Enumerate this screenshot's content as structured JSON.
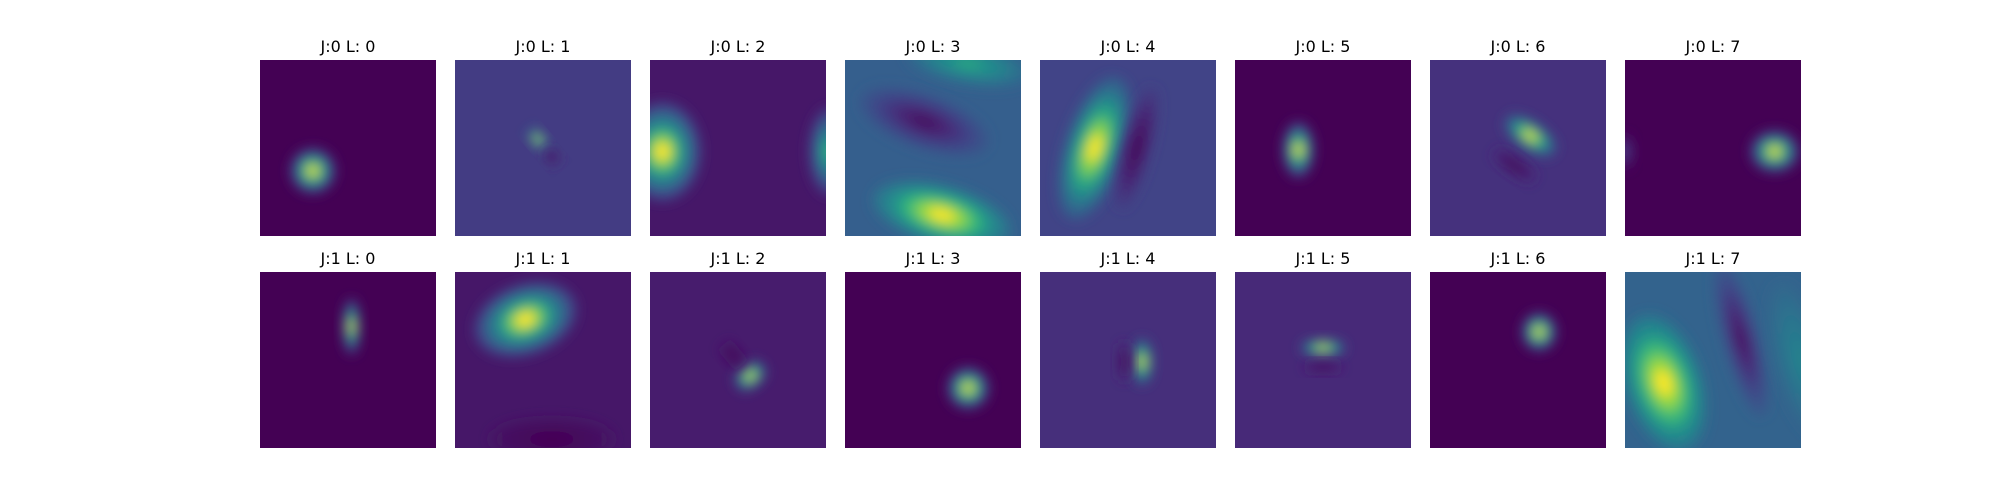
{
  "chart_data": {
    "type": "heatmap",
    "colormap": "viridis",
    "axes_visible": false,
    "rows": 2,
    "cols": 8,
    "panels": [
      {
        "title": "J:0 L: 0",
        "background": 0.0,
        "blobs": [
          {
            "cx": 0.3,
            "cy": 0.63,
            "rx": 0.13,
            "ry": 0.13,
            "rot": 0,
            "v": 1.0
          }
        ]
      },
      {
        "title": "J:0 L: 1",
        "background": 0.22,
        "blobs": [
          {
            "cx": 0.47,
            "cy": 0.45,
            "rx": 0.04,
            "ry": 0.07,
            "rot": -40,
            "v": 1.0
          },
          {
            "cx": 0.55,
            "cy": 0.55,
            "rx": 0.04,
            "ry": 0.05,
            "rot": -40,
            "v": 0.0
          }
        ]
      },
      {
        "title": "J:0 L: 2",
        "background": 0.08,
        "blobs": [
          {
            "cx": 0.07,
            "cy": 0.52,
            "rx": 0.22,
            "ry": 0.28,
            "rot": 0,
            "v": 1.0
          },
          {
            "cx": 1.02,
            "cy": 0.52,
            "rx": 0.12,
            "ry": 0.25,
            "rot": 0,
            "v": 0.75
          }
        ]
      },
      {
        "title": "J:0 L: 3",
        "background": 0.38,
        "blobs": [
          {
            "cx": 0.45,
            "cy": 0.35,
            "rx": 0.38,
            "ry": 0.15,
            "rot": 20,
            "v": 0.05
          },
          {
            "cx": 0.55,
            "cy": 0.88,
            "rx": 0.4,
            "ry": 0.17,
            "rot": 15,
            "v": 1.0
          },
          {
            "cx": 0.7,
            "cy": 0.02,
            "rx": 0.35,
            "ry": 0.12,
            "rot": 10,
            "v": 0.7
          }
        ]
      },
      {
        "title": "J:0 L: 4",
        "background": 0.25,
        "blobs": [
          {
            "cx": 0.31,
            "cy": 0.5,
            "rx": 0.17,
            "ry": 0.42,
            "rot": 18,
            "v": 1.0
          },
          {
            "cx": 0.55,
            "cy": 0.5,
            "rx": 0.08,
            "ry": 0.35,
            "rot": 15,
            "v": 0.0
          }
        ]
      },
      {
        "title": "J:0 L: 5",
        "background": 0.0,
        "blobs": [
          {
            "cx": 0.36,
            "cy": 0.51,
            "rx": 0.09,
            "ry": 0.16,
            "rot": 0,
            "v": 1.0
          }
        ]
      },
      {
        "title": "J:0 L: 6",
        "background": 0.18,
        "blobs": [
          {
            "cx": 0.57,
            "cy": 0.43,
            "rx": 0.17,
            "ry": 0.08,
            "rot": 35,
            "v": 1.0
          },
          {
            "cx": 0.48,
            "cy": 0.6,
            "rx": 0.14,
            "ry": 0.05,
            "rot": 35,
            "v": 0.0
          }
        ]
      },
      {
        "title": "J:0 L: 7",
        "background": 0.0,
        "blobs": [
          {
            "cx": 0.85,
            "cy": 0.52,
            "rx": 0.14,
            "ry": 0.12,
            "rot": 0,
            "v": 1.0
          },
          {
            "cx": 0.0,
            "cy": 0.52,
            "rx": 0.05,
            "ry": 0.1,
            "rot": 0,
            "v": 0.25
          }
        ]
      },
      {
        "title": "J:1 L: 0",
        "background": 0.0,
        "blobs": [
          {
            "cx": 0.52,
            "cy": 0.31,
            "rx": 0.05,
            "ry": 0.16,
            "rot": 0,
            "v": 1.0
          }
        ]
      },
      {
        "title": "J:1 L: 1",
        "background": 0.08,
        "blobs": [
          {
            "cx": 0.4,
            "cy": 0.27,
            "rx": 0.3,
            "ry": 0.2,
            "rot": -20,
            "v": 1.0
          },
          {
            "cx": 0.55,
            "cy": 0.95,
            "rx": 0.35,
            "ry": 0.12,
            "rot": 0,
            "v": 0.0
          }
        ]
      },
      {
        "title": "J:1 L: 2",
        "background": 0.1,
        "blobs": [
          {
            "cx": 0.57,
            "cy": 0.59,
            "rx": 0.1,
            "ry": 0.07,
            "rot": -40,
            "v": 1.0
          },
          {
            "cx": 0.47,
            "cy": 0.47,
            "rx": 0.05,
            "ry": 0.08,
            "rot": -40,
            "v": 0.0
          }
        ]
      },
      {
        "title": "J:1 L: 3",
        "background": 0.0,
        "blobs": [
          {
            "cx": 0.7,
            "cy": 0.66,
            "rx": 0.12,
            "ry": 0.12,
            "rot": 0,
            "v": 1.0
          }
        ]
      },
      {
        "title": "J:1 L: 4",
        "background": 0.17,
        "blobs": [
          {
            "cx": 0.58,
            "cy": 0.51,
            "rx": 0.06,
            "ry": 0.13,
            "rot": 0,
            "v": 1.0
          },
          {
            "cx": 0.48,
            "cy": 0.51,
            "rx": 0.04,
            "ry": 0.11,
            "rot": 0,
            "v": 0.0
          }
        ]
      },
      {
        "title": "J:1 L: 5",
        "background": 0.15,
        "blobs": [
          {
            "cx": 0.5,
            "cy": 0.43,
            "rx": 0.13,
            "ry": 0.05,
            "rot": 0,
            "v": 1.0
          },
          {
            "cx": 0.5,
            "cy": 0.54,
            "rx": 0.11,
            "ry": 0.03,
            "rot": 0,
            "v": 0.0
          }
        ]
      },
      {
        "title": "J:1 L: 6",
        "background": 0.0,
        "blobs": [
          {
            "cx": 0.62,
            "cy": 0.34,
            "rx": 0.1,
            "ry": 0.11,
            "rot": 0,
            "v": 1.0
          }
        ]
      },
      {
        "title": "J:1 L: 7",
        "background": 0.4,
        "blobs": [
          {
            "cx": 0.22,
            "cy": 0.63,
            "rx": 0.22,
            "ry": 0.4,
            "rot": -18,
            "v": 1.0
          },
          {
            "cx": 0.66,
            "cy": 0.38,
            "rx": 0.1,
            "ry": 0.45,
            "rot": -15,
            "v": 0.05
          },
          {
            "cx": 1.0,
            "cy": 0.5,
            "rx": 0.15,
            "ry": 0.45,
            "rot": -15,
            "v": 0.55
          }
        ]
      }
    ]
  }
}
